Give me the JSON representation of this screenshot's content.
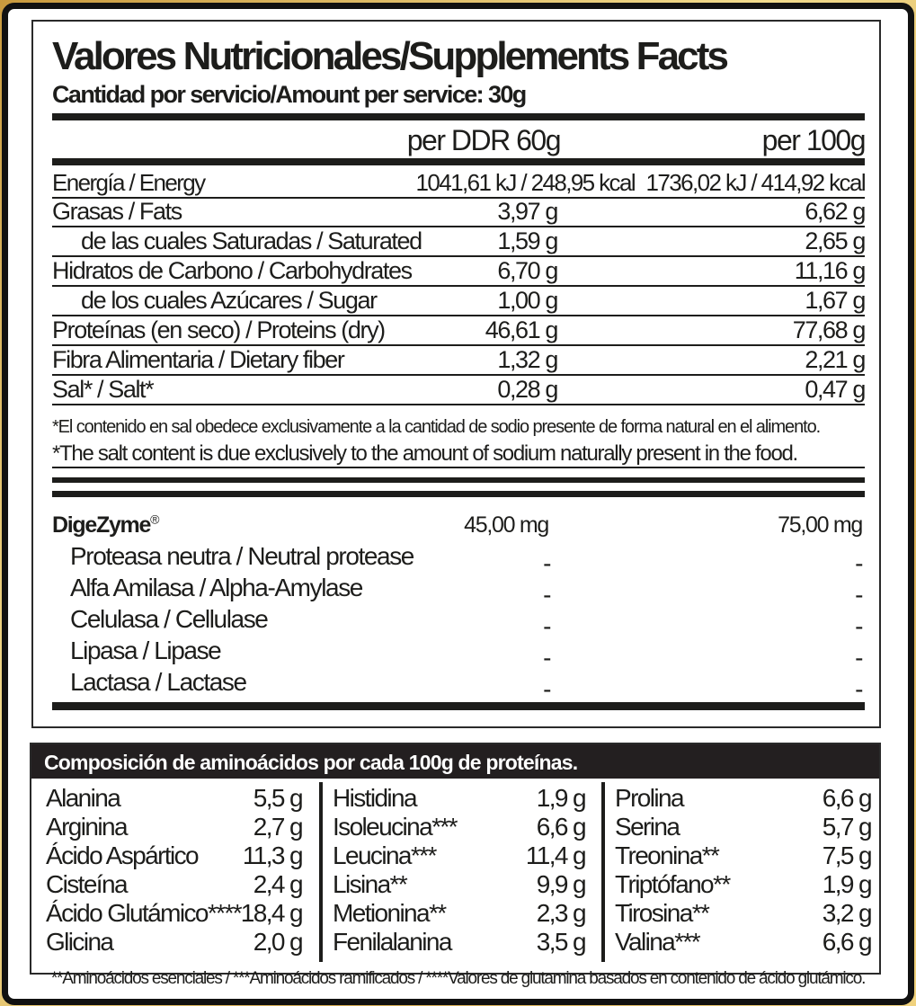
{
  "title": "Valores Nutricionales/Supplements Facts",
  "subtitle": "Cantidad por servicio/Amount per service: 30g",
  "columns": {
    "col1": "per DDR 60g",
    "col2": "per 100g"
  },
  "nutrients": [
    {
      "label": "Energía / Energy",
      "v1": "1041,61 kJ / 248,95 kcal",
      "v2": "1736,02 kJ / 414,92 kcal"
    },
    {
      "label": "Grasas / Fats",
      "v1": "3,97 g",
      "v2": "6,62 g"
    },
    {
      "label": "de las cuales Saturadas / Saturated",
      "v1": "1,59 g",
      "v2": "2,65 g"
    },
    {
      "label": "Hidratos de Carbono / Carbohydrates",
      "v1": "6,70 g",
      "v2": "11,16 g"
    },
    {
      "label": "de los cuales Azúcares / Sugar",
      "v1": "1,00 g",
      "v2": "1,67 g"
    },
    {
      "label": "Proteínas (en seco) / Proteins (dry)",
      "v1": "46,61 g",
      "v2": "77,68 g"
    },
    {
      "label": "Fibra Alimentaria / Dietary fiber",
      "v1": "1,32 g",
      "v2": "2,21 g"
    },
    {
      "label": "Sal* / Salt*",
      "v1": "0,28 g",
      "v2": "0,47 g"
    }
  ],
  "footnotes": {
    "es": "*El contenido en sal obedece exclusivamente a la cantidad de sodio presente de forma natural en el alimento.",
    "en": "*The salt content is due exclusively to the amount of sodium naturally present in the food."
  },
  "digezyme": {
    "label": "DigeZyme",
    "mark": "®",
    "v1": "45,00 mg",
    "v2": "75,00 mg"
  },
  "enzymes": [
    {
      "label": "Proteasa neutra / Neutral protease",
      "v1": "-",
      "v2": "-"
    },
    {
      "label": "Alfa Amilasa / Alpha-Amylase",
      "v1": "-",
      "v2": "-"
    },
    {
      "label": "Celulasa / Cellulase",
      "v1": "-",
      "v2": "-"
    },
    {
      "label": "Lipasa / Lipase",
      "v1": "-",
      "v2": "-"
    },
    {
      "label": "Lactasa / Lactase",
      "v1": "-",
      "v2": "-"
    }
  ],
  "amino": {
    "heading": "Composición de aminoácidos por cada 100g de proteínas.",
    "columns": [
      [
        {
          "name": "Alanina",
          "value": "5,5 g"
        },
        {
          "name": "Arginina",
          "value": "2,7 g"
        },
        {
          "name": "Ácido Aspártico",
          "value": "11,3 g"
        },
        {
          "name": "Cisteína",
          "value": "2,4 g"
        },
        {
          "name": "Ácido Glutámico****",
          "value": "18,4 g"
        },
        {
          "name": "Glicina",
          "value": "2,0 g"
        }
      ],
      [
        {
          "name": "Histidina",
          "value": "1,9 g"
        },
        {
          "name": "Isoleucina***",
          "value": "6,6 g"
        },
        {
          "name": "Leucina***",
          "value": "11,4 g"
        },
        {
          "name": "Lisina**",
          "value": "9,9 g"
        },
        {
          "name": "Metionina**",
          "value": "2,3 g"
        },
        {
          "name": "Fenilalanina",
          "value": "3,5 g"
        }
      ],
      [
        {
          "name": "Prolina",
          "value": "6,6 g"
        },
        {
          "name": "Serina",
          "value": "5,7 g"
        },
        {
          "name": "Treonina**",
          "value": "7,5 g"
        },
        {
          "name": "Triptófano**",
          "value": "1,9 g"
        },
        {
          "name": "Tirosina**",
          "value": "3,2 g"
        },
        {
          "name": "Valina***",
          "value": "6,6 g"
        }
      ]
    ],
    "footnote": "**Aminoácidos esenciales / ***Aminoácidos ramificados / ****Valores de glutamina basados en contenido de ácido glutámico."
  }
}
